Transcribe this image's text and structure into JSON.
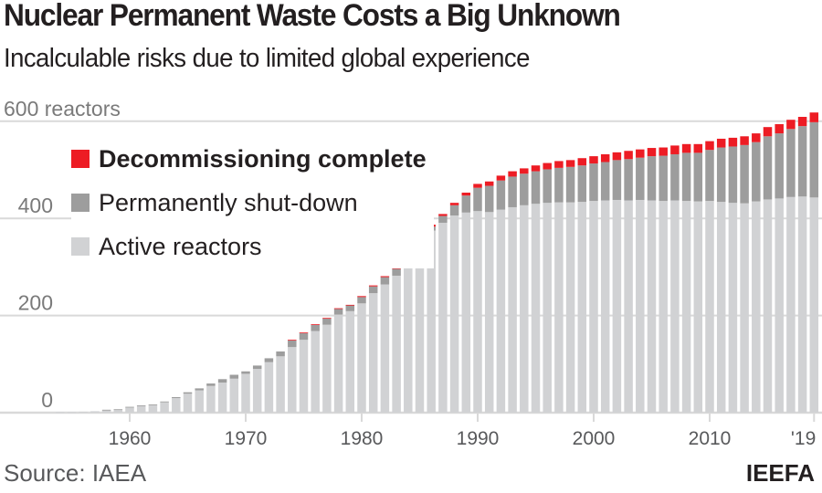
{
  "header": {
    "title": "Nuclear Permanent Waste Costs a Big Unknown",
    "subtitle": "Incalculable risks due to limited global experience"
  },
  "footer": {
    "source": "Source: IAEA",
    "brand": "IEEFA"
  },
  "colors": {
    "decommissioned": "#ed1c24",
    "shutdown": "#9d9d9d",
    "active": "#d1d2d4",
    "gridline": "#d9d9d9"
  },
  "chart_data": {
    "type": "bar",
    "stacked": true,
    "title": "Nuclear Permanent Waste Costs a Big Unknown",
    "subtitle": "Incalculable risks due to limited global experience",
    "xlabel": "",
    "ylabel": "reactors",
    "ylim": [
      0,
      600
    ],
    "y_ticks": [
      {
        "value": 0,
        "label": "0"
      },
      {
        "value": 200,
        "label": "200"
      },
      {
        "value": 400,
        "label": "400"
      },
      {
        "value": 600,
        "label": "600 reactors"
      }
    ],
    "x_ticks": [
      {
        "value": 1960,
        "label": "1960"
      },
      {
        "value": 1970,
        "label": "1970"
      },
      {
        "value": 1980,
        "label": "1980"
      },
      {
        "value": 1990,
        "label": "1990"
      },
      {
        "value": 2000,
        "label": "2000"
      },
      {
        "value": 2010,
        "label": "2010"
      },
      {
        "value": 2019,
        "label": "'19"
      }
    ],
    "grid": true,
    "legend_position": "top-left",
    "legend": [
      {
        "key": "decommissioned",
        "label": "Decommissioning complete",
        "bold": true
      },
      {
        "key": "shutdown",
        "label": "Permanently shut-down",
        "bold": false
      },
      {
        "key": "active",
        "label": "Active reactors",
        "bold": false
      }
    ],
    "x": [
      1954,
      1955,
      1956,
      1957,
      1958,
      1959,
      1960,
      1961,
      1962,
      1963,
      1964,
      1965,
      1966,
      1967,
      1968,
      1969,
      1970,
      1971,
      1972,
      1973,
      1974,
      1975,
      1976,
      1977,
      1978,
      1979,
      1980,
      1981,
      1982,
      1983,
      1984,
      1985,
      1986,
      1987,
      1988,
      1989,
      1990,
      1991,
      1992,
      1993,
      1994,
      1995,
      1996,
      1997,
      1998,
      1999,
      2000,
      2001,
      2002,
      2003,
      2004,
      2005,
      2006,
      2007,
      2008,
      2009,
      2010,
      2011,
      2012,
      2013,
      2014,
      2015,
      2016,
      2017,
      2018,
      2019
    ],
    "series": [
      {
        "name": "Active reactors",
        "key": "active",
        "values": [
          1,
          1,
          2,
          3,
          5,
          6,
          11,
          14,
          16,
          22,
          30,
          39,
          46,
          55,
          62,
          70,
          80,
          90,
          104,
          116,
          135,
          150,
          168,
          181,
          202,
          209,
          225,
          246,
          264,
          282,
          310,
          341,
          375,
          391,
          406,
          412,
          415,
          413,
          418,
          423,
          427,
          430,
          432,
          433,
          433,
          434,
          436,
          437,
          438,
          437,
          438,
          437,
          436,
          437,
          436,
          435,
          436,
          434,
          432,
          431,
          435,
          439,
          441,
          444,
          445,
          443
        ]
      },
      {
        "name": "Permanently shut-down",
        "key": "shutdown",
        "values": [
          0,
          0,
          0,
          0,
          1,
          1,
          1,
          1,
          1,
          1,
          2,
          3,
          4,
          5,
          7,
          8,
          5,
          7,
          8,
          10,
          14,
          14,
          13,
          13,
          12,
          12,
          13,
          14,
          15,
          14,
          15,
          14,
          8,
          14,
          21,
          35,
          48,
          54,
          60,
          63,
          65,
          67,
          69,
          71,
          73,
          75,
          77,
          79,
          82,
          85,
          87,
          91,
          93,
          95,
          99,
          100,
          105,
          112,
          116,
          120,
          122,
          130,
          134,
          140,
          145,
          155
        ]
      },
      {
        "name": "Decommissioning complete",
        "key": "decommissioned",
        "values": [
          0,
          0,
          0,
          0,
          0,
          0,
          0,
          0,
          0,
          0,
          0,
          0,
          0,
          0,
          0,
          0,
          0,
          0,
          0,
          0,
          1,
          1,
          1,
          1,
          1,
          1,
          2,
          2,
          2,
          3,
          3,
          3,
          4,
          4,
          5,
          6,
          8,
          9,
          10,
          11,
          11,
          12,
          13,
          14,
          14,
          15,
          15,
          16,
          16,
          17,
          17,
          17,
          17,
          18,
          18,
          18,
          18,
          18,
          18,
          18,
          18,
          19,
          19,
          19,
          19,
          20
        ]
      }
    ]
  }
}
